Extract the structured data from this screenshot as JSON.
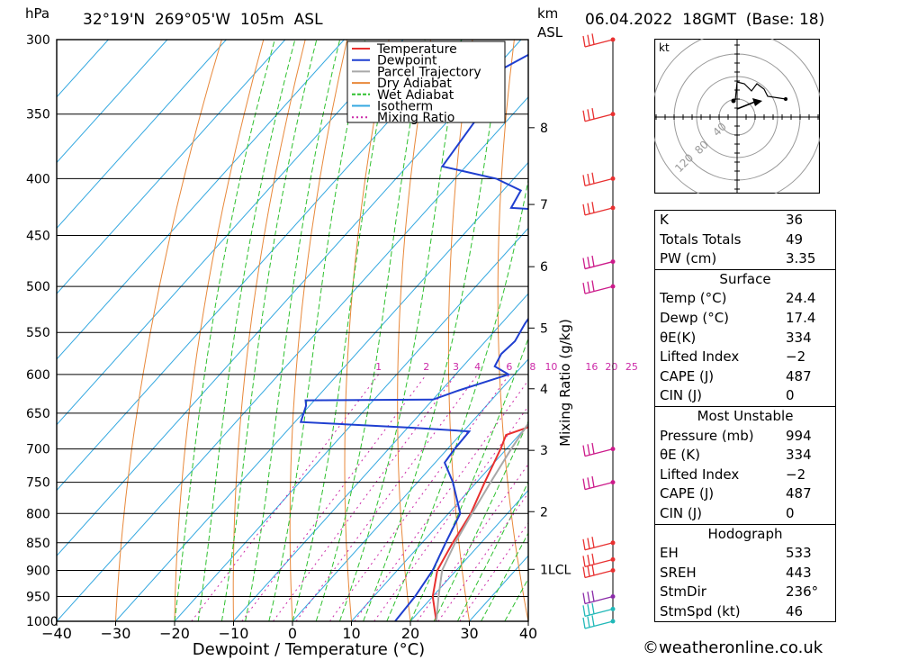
{
  "header": {
    "unit_left": "hPa",
    "location": "32°19'N  269°05'W  105m  ASL",
    "km_label": "km",
    "asl_label": "ASL",
    "datetime": "06.04.2022  18GMT  (Base: 18)"
  },
  "colors": {
    "temperature": "#e8302f",
    "dewpoint": "#1f3fd0",
    "parcel": "#a8a8a8",
    "dry_adiabat": "#e8883a",
    "wet_adiabat": "#2ec02e",
    "isotherm": "#34a8e0",
    "mixing_ratio": "#cc2aa8"
  },
  "chart_data": {
    "type": "line",
    "title": "",
    "xlabel": "Dewpoint / Temperature (°C)",
    "ylabel_left": "hPa",
    "ylabel_right": "Mixing Ratio (g/kg)",
    "xlim": [
      -40,
      40
    ],
    "ylim": [
      1000,
      300
    ],
    "x_ticks": [
      "−40",
      "−30",
      "−20",
      "−10",
      "0",
      "10",
      "20",
      "30",
      "40"
    ],
    "pressure_levels": [
      300,
      350,
      400,
      450,
      500,
      550,
      600,
      650,
      700,
      750,
      800,
      850,
      900,
      950,
      1000
    ],
    "km_ticks": [
      {
        "km": "1LCL",
        "p": 898
      },
      {
        "km": "2",
        "p": 797
      },
      {
        "km": "3",
        "p": 702
      },
      {
        "km": "4",
        "p": 618
      },
      {
        "km": "5",
        "p": 545
      },
      {
        "km": "6",
        "p": 480
      },
      {
        "km": "7",
        "p": 422
      },
      {
        "km": "8",
        "p": 360
      }
    ],
    "mixing_ratio_labels": [
      "1",
      "2",
      "3",
      "4",
      "6",
      "8",
      "10",
      "16",
      "20",
      "25"
    ],
    "legend": [
      "Temperature",
      "Dewpoint",
      "Parcel Trajectory",
      "Dry Adiabat",
      "Wet Adiabat",
      "Isotherm",
      "Mixing Ratio"
    ],
    "legend_position": "top-right",
    "series": [
      {
        "name": "Temperature",
        "points": [
          [
            1000,
            24.4
          ],
          [
            950,
            20
          ],
          [
            900,
            16.8
          ],
          [
            850,
            15.2
          ],
          [
            800,
            13.8
          ],
          [
            750,
            11.4
          ],
          [
            700,
            9
          ],
          [
            680,
            7.8
          ],
          [
            670,
            10.2
          ],
          [
            650,
            12.2
          ],
          [
            620,
            11
          ],
          [
            600,
            9
          ],
          [
            550,
            5.6
          ],
          [
            525,
            3
          ],
          [
            500,
            1.8
          ],
          [
            470,
            -1
          ],
          [
            450,
            -2.4
          ],
          [
            435,
            -3
          ],
          [
            425,
            -4.8
          ],
          [
            420,
            -3.8
          ],
          [
            400,
            -6
          ],
          [
            380,
            -9.2
          ],
          [
            350,
            -14.6
          ],
          [
            320,
            -20
          ],
          [
            300,
            -24
          ]
        ]
      },
      {
        "name": "Dewpoint",
        "points": [
          [
            1000,
            17.4
          ],
          [
            950,
            17
          ],
          [
            900,
            16
          ],
          [
            850,
            14
          ],
          [
            800,
            12
          ],
          [
            750,
            6
          ],
          [
            720,
            1.6
          ],
          [
            700,
            1.2
          ],
          [
            675,
            1
          ],
          [
            670,
            -9
          ],
          [
            662,
            -29
          ],
          [
            640,
            -30.6
          ],
          [
            633,
            -31.5
          ],
          [
            632,
            -10
          ],
          [
            620,
            -7
          ],
          [
            600,
            -1
          ],
          [
            590,
            -4.6
          ],
          [
            575,
            -5.4
          ],
          [
            560,
            -5
          ],
          [
            540,
            -6
          ],
          [
            520,
            -6.6
          ],
          [
            510,
            -5.2
          ],
          [
            490,
            -4.4
          ],
          [
            470,
            -6
          ],
          [
            460,
            -6.8
          ],
          [
            448,
            -8.5
          ],
          [
            440,
            -7
          ],
          [
            430,
            -8
          ],
          [
            425,
            -26
          ],
          [
            410,
            -27
          ],
          [
            400,
            -33
          ],
          [
            390,
            -44
          ],
          [
            340,
            -46
          ],
          [
            320,
            -49
          ],
          [
            300,
            -44
          ]
        ]
      },
      {
        "name": "Parcel Trajectory",
        "points": [
          [
            1000,
            24.4
          ],
          [
            950,
            21
          ],
          [
            900,
            17.6
          ],
          [
            850,
            15.6
          ],
          [
            800,
            14
          ],
          [
            750,
            12.4
          ],
          [
            700,
            10.8
          ],
          [
            650,
            9.4
          ],
          [
            600,
            8
          ],
          [
            550,
            6.4
          ],
          [
            500,
            4.4
          ],
          [
            450,
            2
          ],
          [
            400,
            -1
          ],
          [
            350,
            -5
          ],
          [
            300,
            -11
          ]
        ]
      }
    ],
    "wind_barbs": [
      "300",
      "350",
      "400",
      "425",
      "475",
      "500",
      "700",
      "750",
      "850",
      "880",
      "900",
      "950",
      "975",
      "1000"
    ]
  },
  "hodograph": {
    "unit": "kt",
    "ring_labels": [
      "40",
      "80",
      "120"
    ]
  },
  "stats": {
    "k_label": "K",
    "k": "36",
    "tt_label": "Totals Totals",
    "tt": "49",
    "pw_label": "PW (cm)",
    "pw": "3.35",
    "surface_title": "Surface",
    "s_temp_label": "Temp (°C)",
    "s_temp": "24.4",
    "s_dewp_label": "Dewp (°C)",
    "s_dewp": "17.4",
    "s_theta_label": "θE(K)",
    "s_theta": "334",
    "s_li_label": "Lifted Index",
    "s_li": "−2",
    "s_cape_label": "CAPE (J)",
    "s_cape": "487",
    "s_cin_label": "CIN (J)",
    "s_cin": "0",
    "mu_title": "Most Unstable",
    "mu_p_label": "Pressure (mb)",
    "mu_p": "994",
    "mu_theta_label": "θE (K)",
    "mu_theta": "334",
    "mu_li_label": "Lifted Index",
    "mu_li": "−2",
    "mu_cape_label": "CAPE (J)",
    "mu_cape": "487",
    "mu_cin_label": "CIN (J)",
    "mu_cin": "0",
    "hodo_title": "Hodograph",
    "eh_label": "EH",
    "eh": "533",
    "sreh_label": "SREH",
    "sreh": "443",
    "dir_label": "StmDir",
    "dir": "236°",
    "spd_label": "StmSpd (kt)",
    "spd": "46"
  },
  "footer": "©weatheronline.co.uk"
}
